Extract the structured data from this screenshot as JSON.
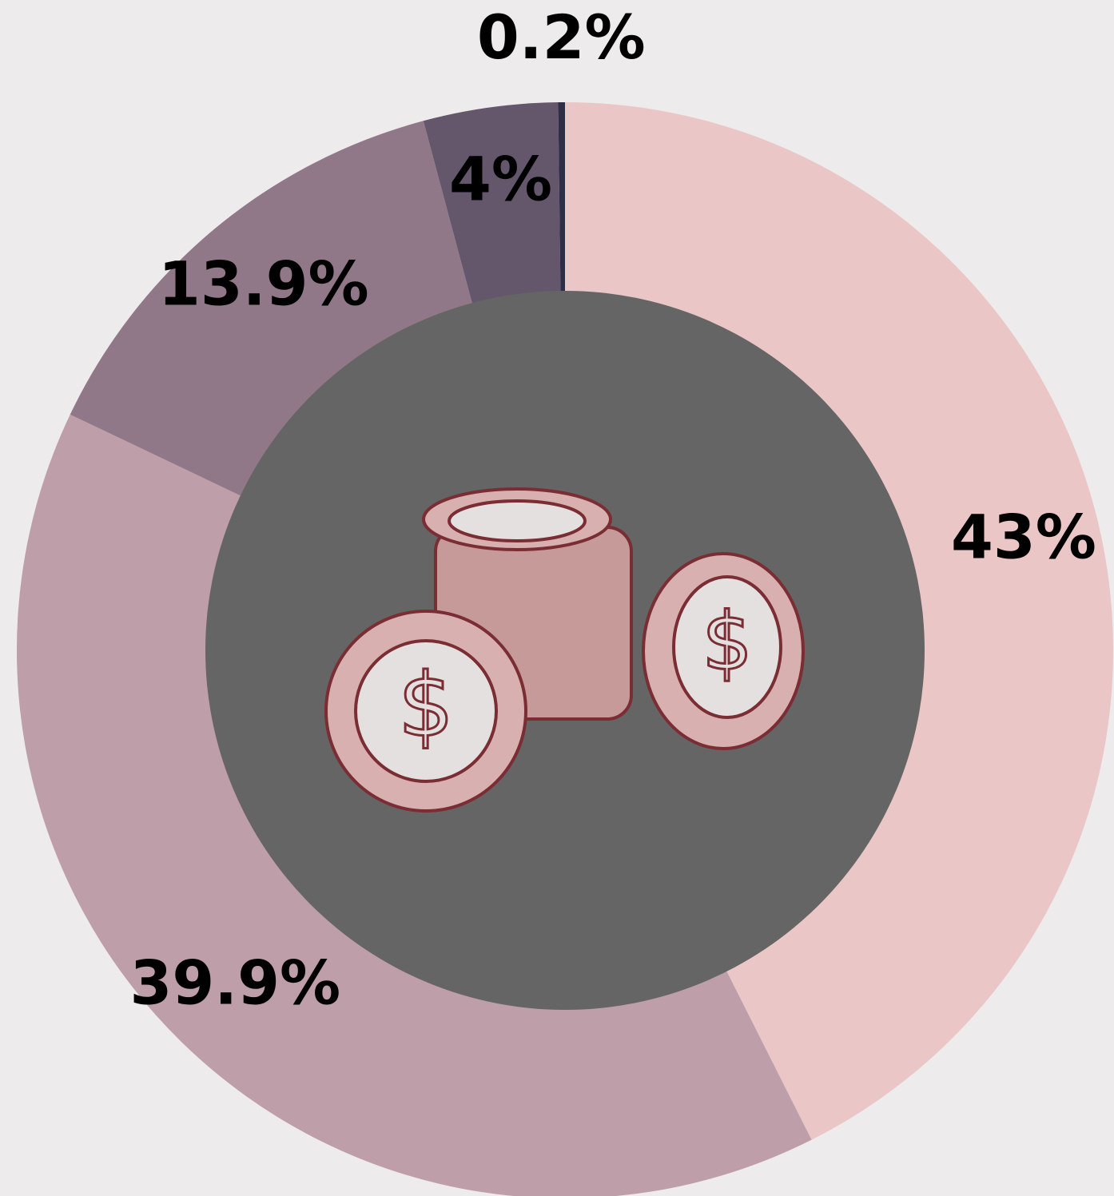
{
  "chart_data": {
    "type": "donut",
    "categories": [
      null,
      null,
      null,
      null,
      null
    ],
    "values": [
      43,
      39.9,
      13.9,
      4,
      0.2
    ],
    "value_labels": [
      "43%",
      "39.9%",
      "13.9%",
      "4%",
      "0.2%"
    ],
    "colors": [
      "#eac6c6",
      "#be9ea8",
      "#917889",
      "#64566b",
      "#2e2e48"
    ]
  }
}
